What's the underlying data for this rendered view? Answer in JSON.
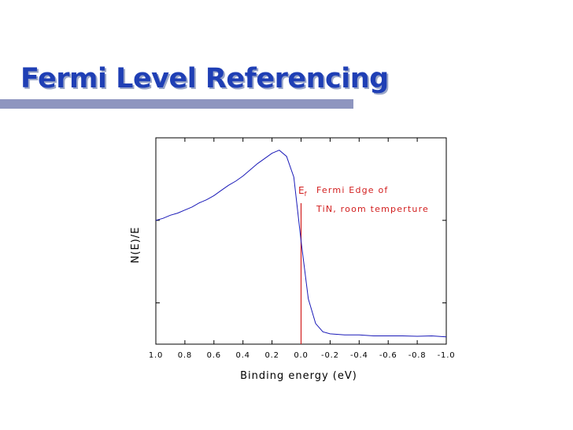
{
  "title": "Fermi Level Referencing",
  "chart_data": {
    "type": "line",
    "title": "",
    "xlabel": "Binding energy (eV)",
    "ylabel": "N(E)/E",
    "xlim": [
      1.0,
      -1.0
    ],
    "x_reversed": true,
    "xticks": [
      "1.0",
      "0.8",
      "0.6",
      "0.4",
      "0.2",
      "0.0",
      "-0.2",
      "-0.4",
      "-0.6",
      "-0.8",
      "-1.0"
    ],
    "ylim": [
      0,
      1
    ],
    "y_tick_labels_shown": false,
    "grid": false,
    "series": [
      {
        "color": "#1a1ab8",
        "x": [
          1.0,
          0.95,
          0.9,
          0.85,
          0.8,
          0.75,
          0.7,
          0.65,
          0.6,
          0.55,
          0.5,
          0.45,
          0.4,
          0.35,
          0.3,
          0.25,
          0.2,
          0.15,
          0.1,
          0.05,
          0.0,
          -0.05,
          -0.1,
          -0.15,
          -0.2,
          -0.3,
          -0.4,
          -0.5,
          -0.6,
          -0.7,
          -0.8,
          -0.9,
          -1.0
        ],
        "values": [
          0.6,
          0.61,
          0.625,
          0.635,
          0.65,
          0.665,
          0.685,
          0.7,
          0.72,
          0.745,
          0.77,
          0.79,
          0.815,
          0.845,
          0.875,
          0.9,
          0.925,
          0.94,
          0.91,
          0.81,
          0.5,
          0.22,
          0.1,
          0.06,
          0.05,
          0.045,
          0.045,
          0.04,
          0.04,
          0.04,
          0.038,
          0.04,
          0.035
        ]
      }
    ],
    "vline": {
      "x": 0.0,
      "color": "#d21e1e"
    },
    "annotation": {
      "ef_main": "E",
      "ef_sub": "f",
      "line1": "Fermi Edge of",
      "line2": "TiN, room temperture"
    }
  }
}
